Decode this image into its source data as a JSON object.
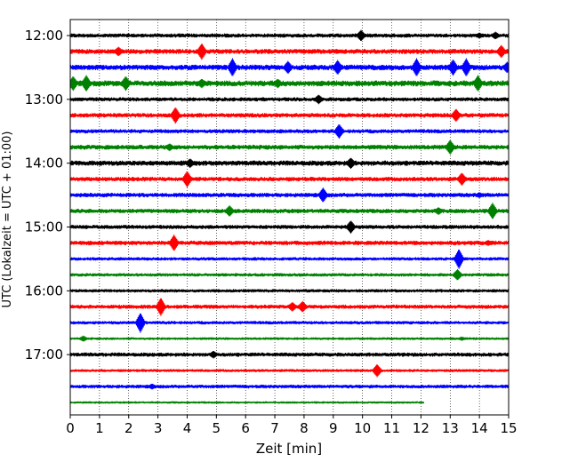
{
  "chart_data": {
    "type": "line",
    "title": "",
    "xlabel": "Zeit  [min]",
    "ylabel": "UTC (Lokalzeit = UTC + 01:00)",
    "xlim": [
      0,
      15
    ],
    "x_ticks": [
      "0",
      "1",
      "2",
      "3",
      "4",
      "5",
      "6",
      "7",
      "8",
      "9",
      "10",
      "11",
      "12",
      "13",
      "14",
      "15"
    ],
    "y_ticks": [
      "12:00",
      "13:00",
      "14:00",
      "15:00",
      "16:00",
      "17:00"
    ],
    "vertical_grid": true,
    "line_colors": [
      "#000000",
      "#ff0000",
      "#0000ff",
      "#008000"
    ],
    "traces": [
      {
        "start": "12:00",
        "color": "#000000",
        "end_min": 15,
        "noise": 2.0,
        "events": [
          [
            9.95,
            6
          ],
          [
            14.0,
            3
          ],
          [
            14.55,
            4
          ]
        ]
      },
      {
        "start": "12:15",
        "color": "#ff0000",
        "end_min": 15,
        "noise": 2.5,
        "events": [
          [
            1.65,
            5
          ],
          [
            4.5,
            9
          ],
          [
            14.75,
            7
          ]
        ]
      },
      {
        "start": "12:30",
        "color": "#0000ff",
        "end_min": 15,
        "noise": 2.8,
        "events": [
          [
            5.55,
            10
          ],
          [
            7.45,
            7
          ],
          [
            9.15,
            8
          ],
          [
            11.85,
            10
          ],
          [
            13.1,
            9
          ],
          [
            13.55,
            10
          ],
          [
            14.95,
            6
          ]
        ]
      },
      {
        "start": "12:45",
        "color": "#008000",
        "end_min": 15,
        "noise": 3.0,
        "events": [
          [
            0.1,
            8
          ],
          [
            0.55,
            9
          ],
          [
            1.9,
            8
          ],
          [
            4.5,
            5
          ],
          [
            7.1,
            5
          ],
          [
            13.95,
            9
          ]
        ]
      },
      {
        "start": "13:00",
        "color": "#000000",
        "end_min": 15,
        "noise": 2.0,
        "events": [
          [
            8.5,
            5
          ]
        ]
      },
      {
        "start": "13:15",
        "color": "#ff0000",
        "end_min": 15,
        "noise": 2.2,
        "events": [
          [
            3.6,
            9
          ],
          [
            13.2,
            7
          ]
        ]
      },
      {
        "start": "13:30",
        "color": "#0000ff",
        "end_min": 15,
        "noise": 2.0,
        "events": [
          [
            9.2,
            8
          ]
        ]
      },
      {
        "start": "13:45",
        "color": "#008000",
        "end_min": 15,
        "noise": 2.4,
        "events": [
          [
            3.4,
            4
          ],
          [
            13.0,
            8
          ]
        ]
      },
      {
        "start": "14:00",
        "color": "#000000",
        "end_min": 15,
        "noise": 2.6,
        "events": [
          [
            4.1,
            5
          ],
          [
            9.6,
            6
          ]
        ]
      },
      {
        "start": "14:15",
        "color": "#ff0000",
        "end_min": 15,
        "noise": 2.2,
        "events": [
          [
            4.0,
            9
          ],
          [
            13.4,
            7
          ]
        ]
      },
      {
        "start": "14:30",
        "color": "#0000ff",
        "end_min": 15,
        "noise": 2.2,
        "events": [
          [
            8.65,
            8
          ],
          [
            14.0,
            3
          ]
        ]
      },
      {
        "start": "14:45",
        "color": "#008000",
        "end_min": 15,
        "noise": 2.2,
        "events": [
          [
            5.45,
            6
          ],
          [
            12.6,
            4
          ],
          [
            14.45,
            9
          ]
        ]
      },
      {
        "start": "15:00",
        "color": "#000000",
        "end_min": 15,
        "noise": 2.0,
        "events": [
          [
            9.6,
            7
          ]
        ]
      },
      {
        "start": "15:15",
        "color": "#ff0000",
        "end_min": 15,
        "noise": 2.2,
        "events": [
          [
            3.55,
            9
          ],
          [
            14.3,
            3
          ]
        ]
      },
      {
        "start": "15:30",
        "color": "#0000ff",
        "end_min": 15,
        "noise": 1.6,
        "events": [
          [
            13.3,
            11
          ]
        ]
      },
      {
        "start": "15:45",
        "color": "#008000",
        "end_min": 15,
        "noise": 1.6,
        "events": [
          [
            13.25,
            6
          ]
        ]
      },
      {
        "start": "16:00",
        "color": "#000000",
        "end_min": 15,
        "noise": 1.6,
        "events": []
      },
      {
        "start": "16:15",
        "color": "#ff0000",
        "end_min": 15,
        "noise": 2.0,
        "events": [
          [
            3.1,
            10
          ],
          [
            7.6,
            5
          ],
          [
            7.95,
            6
          ]
        ]
      },
      {
        "start": "16:30",
        "color": "#0000ff",
        "end_min": 15,
        "noise": 1.6,
        "events": [
          [
            2.4,
            11
          ]
        ]
      },
      {
        "start": "16:45",
        "color": "#008000",
        "end_min": 15,
        "noise": 1.2,
        "events": [
          [
            0.45,
            3
          ],
          [
            13.4,
            2
          ]
        ]
      },
      {
        "start": "17:00",
        "color": "#000000",
        "end_min": 15,
        "noise": 2.0,
        "events": [
          [
            4.9,
            4
          ]
        ]
      },
      {
        "start": "17:15",
        "color": "#ff0000",
        "end_min": 15,
        "noise": 1.4,
        "events": [
          [
            10.5,
            7
          ]
        ]
      },
      {
        "start": "17:30",
        "color": "#0000ff",
        "end_min": 15,
        "noise": 1.8,
        "events": [
          [
            2.8,
            3
          ]
        ]
      },
      {
        "start": "17:45",
        "color": "#008000",
        "end_min": 12.1,
        "noise": 1.0,
        "events": []
      }
    ]
  }
}
